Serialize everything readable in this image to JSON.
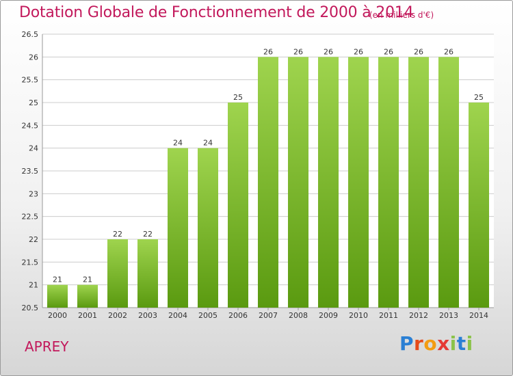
{
  "header": {
    "title": "Dotation Globale de Fonctionnement de 2000 à 2014",
    "subtitle": "(en milliers d'€)"
  },
  "footer": {
    "commune": "APREY",
    "logo_text": "Proxiti"
  },
  "colors": {
    "title": "#c2185b",
    "bar_top": "#9fd44e",
    "bar_bottom": "#5a9a10",
    "grid": "#cccccc"
  },
  "chart_data": {
    "type": "bar",
    "categories": [
      "2000",
      "2001",
      "2002",
      "2003",
      "2004",
      "2005",
      "2006",
      "2007",
      "2008",
      "2009",
      "2010",
      "2011",
      "2012",
      "2013",
      "2014"
    ],
    "values": [
      21,
      21,
      22,
      22,
      24,
      24,
      25,
      26,
      26,
      26,
      26,
      26,
      26,
      26,
      25
    ],
    "ylim": [
      20.5,
      26.5
    ],
    "yticks": [
      20.5,
      21,
      21.5,
      22,
      22.5,
      23,
      23.5,
      24,
      24.5,
      25,
      25.5,
      26,
      26.5
    ],
    "grid": true
  }
}
